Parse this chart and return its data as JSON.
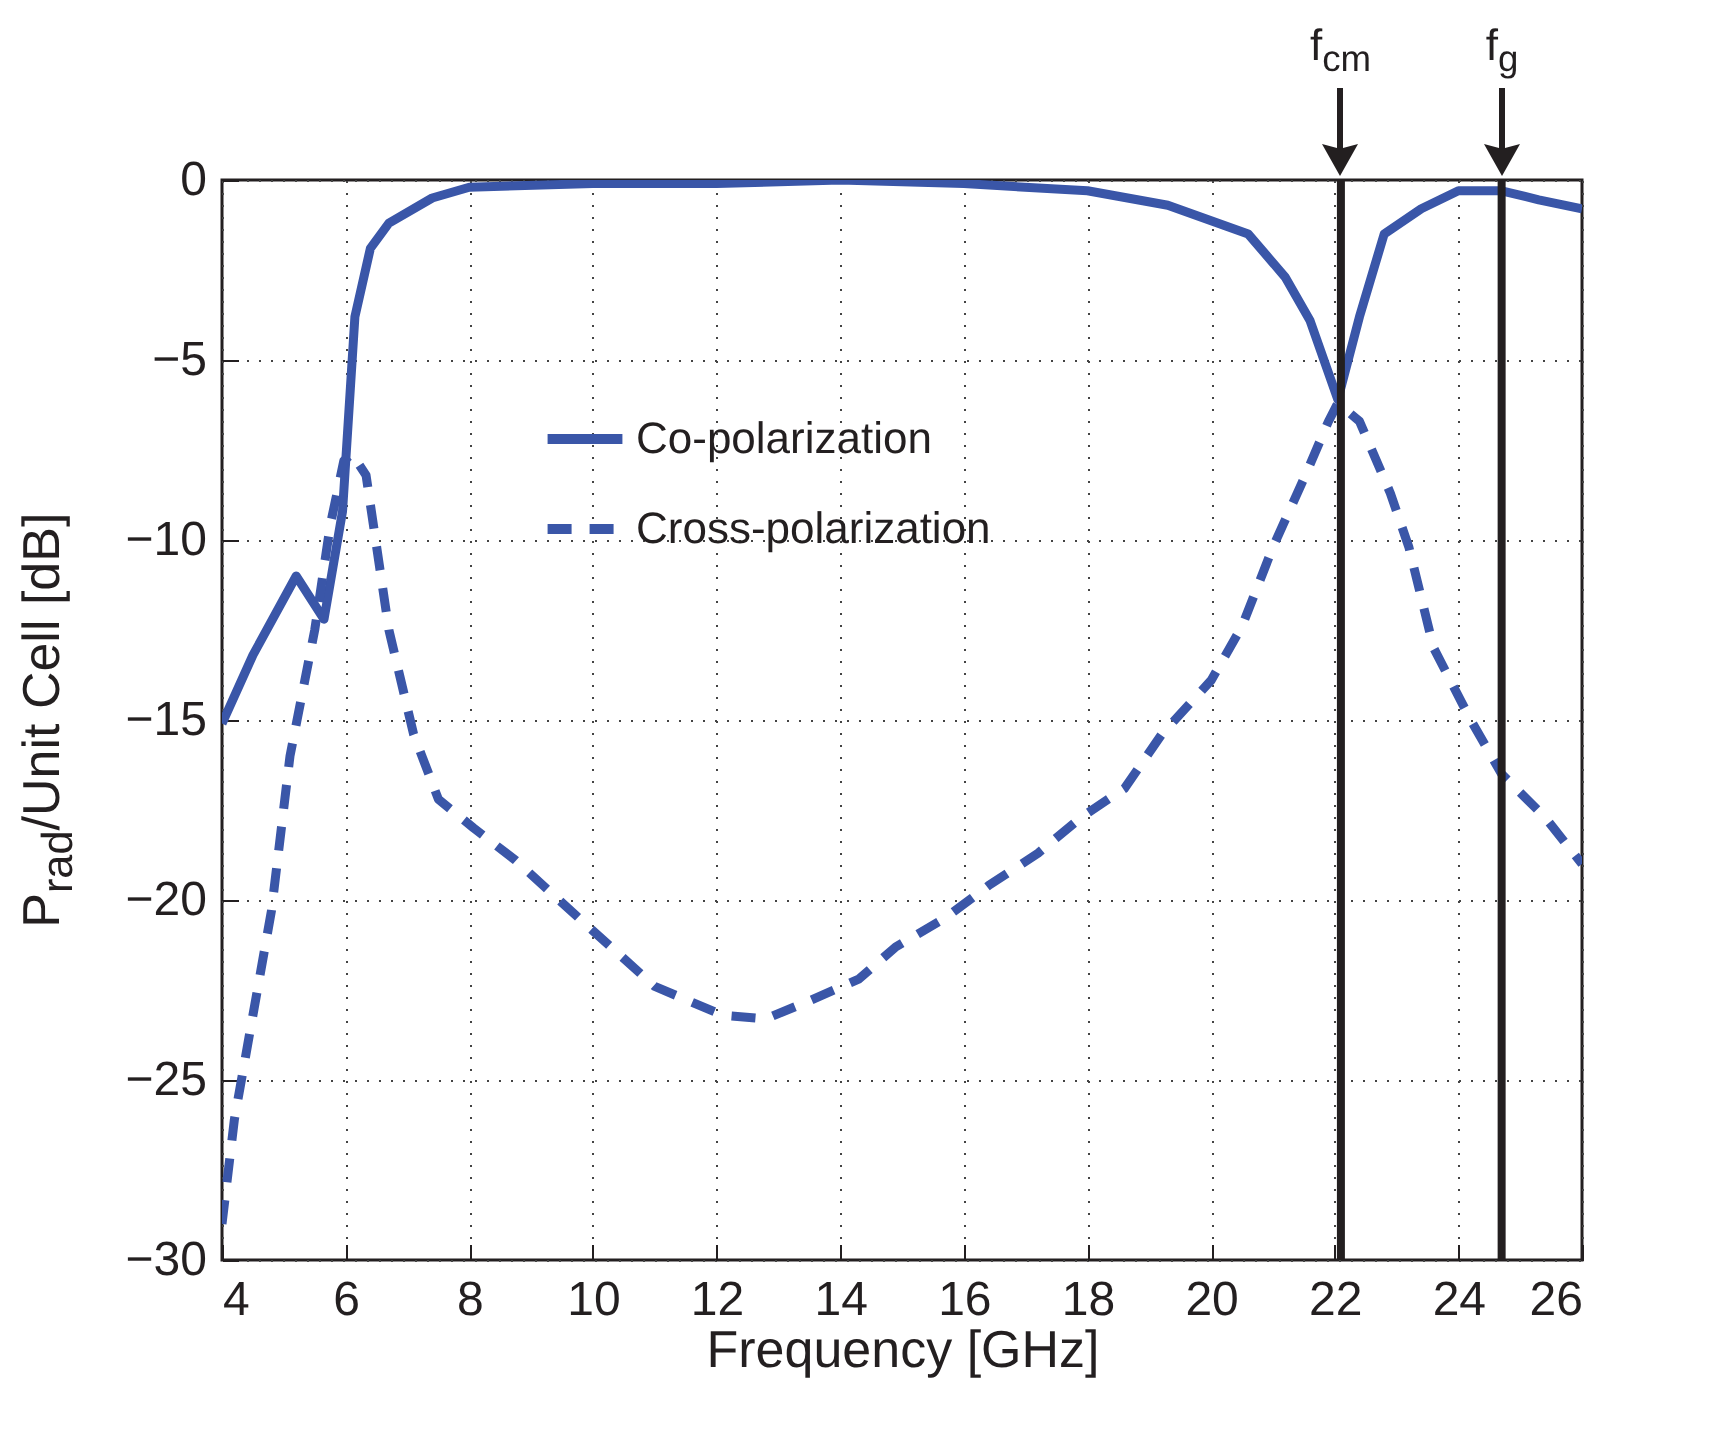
{
  "chart_data": {
    "type": "line",
    "xlabel": "Frequency [GHz]",
    "ylabel": "P$_{rad}$/Unit Cell [dB]",
    "xlim": [
      4,
      26
    ],
    "xticks": [
      4,
      6,
      8,
      10,
      12,
      14,
      16,
      18,
      20,
      22,
      24,
      26
    ],
    "ylim": [
      -30,
      0
    ],
    "yticks": [
      -30,
      -25,
      -20,
      -15,
      -10,
      -5,
      0
    ],
    "grid": true,
    "legend": "top",
    "series": [
      {
        "name": "Co-polarization",
        "color": "#3a56a8",
        "line_style": "solid",
        "x": [
          4,
          4.5,
          5.2,
          5.65,
          5.95,
          6.15,
          6.4,
          6.7,
          7.4,
          8,
          10,
          12,
          14,
          16,
          18,
          19.3,
          20.6,
          21.2,
          21.6,
          22.05,
          22.4,
          22.8,
          23.4,
          24,
          24.7,
          25.3,
          26
        ],
        "values": [
          -15.1,
          -13.2,
          -11.0,
          -12.2,
          -9.2,
          -3.8,
          -1.9,
          -1.2,
          -0.5,
          -0.2,
          -0.1,
          -0.1,
          0,
          -0.1,
          -0.3,
          -0.7,
          -1.5,
          -2.7,
          -3.9,
          -6.1,
          -3.8,
          -1.5,
          -0.8,
          -0.3,
          -0.3,
          -0.55,
          -0.8
        ]
      },
      {
        "name": "Cross-polarization",
        "color": "#3a56a8",
        "line_style": "dashed",
        "x": [
          4,
          4.2,
          4.8,
          5.1,
          5.5,
          5.75,
          5.97,
          6.1,
          6.33,
          6.7,
          7.1,
          7.5,
          8.07,
          8.75,
          9.9,
          11.0,
          12.1,
          12.8,
          13.5,
          14.3,
          14.9,
          15.7,
          16.4,
          17.2,
          17.9,
          18.6,
          19.2,
          20.0,
          20.5,
          21.0,
          21.5,
          21.9,
          22.05,
          22.4,
          22.9,
          23.2,
          23.6,
          24.2,
          24.7,
          25.4,
          26
        ],
        "values": [
          -29.0,
          -26.1,
          -20.3,
          -16.0,
          -12.5,
          -9.6,
          -7.8,
          -7.6,
          -8.2,
          -12.5,
          -15.4,
          -17.2,
          -18.0,
          -18.9,
          -20.7,
          -22.4,
          -23.2,
          -23.3,
          -22.8,
          -22.2,
          -21.3,
          -20.5,
          -19.6,
          -18.7,
          -17.7,
          -16.9,
          -15.4,
          -13.9,
          -12.4,
          -10.2,
          -8.3,
          -6.7,
          -6.2,
          -6.7,
          -8.7,
          -10.2,
          -13.0,
          -15.0,
          -16.5,
          -17.7,
          -19.0
        ]
      }
    ],
    "ref_lines": [
      {
        "axis": "x",
        "value": 22.1,
        "label": "f$_{cm}$",
        "color": "#231f20"
      },
      {
        "axis": "x",
        "value": 24.7,
        "label": "f$_{g}$",
        "color": "#231f20"
      }
    ]
  }
}
